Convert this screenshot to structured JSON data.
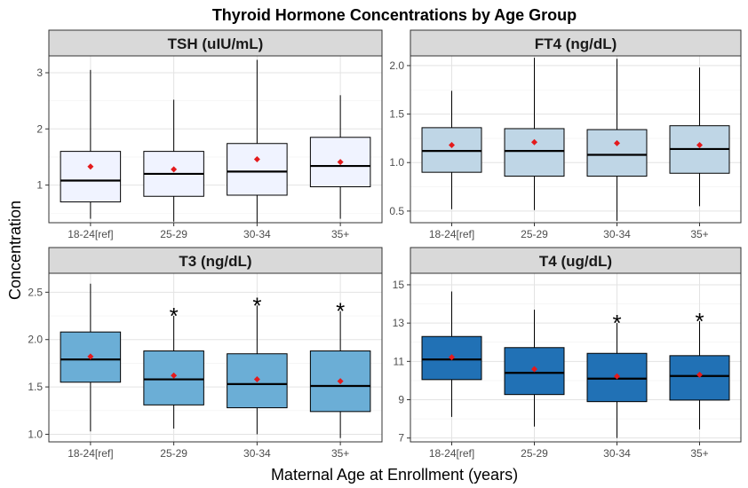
{
  "chart_data": {
    "type": "boxplot",
    "title": "Thyroid Hormone Concentrations by Age Group",
    "xlabel": "Maternal Age at Enrollment (years)",
    "ylabel": "Concentration",
    "categories": [
      "18-24[ref]",
      "25-29",
      "30-34",
      "35+"
    ],
    "grid": true,
    "facets": [
      {
        "name": "TSH (uIU/mL)",
        "fill": "#f0f3ff",
        "ylim": [
          0.33,
          3.3
        ],
        "yticks": [
          1,
          2,
          3
        ],
        "tick_labels": [
          "1",
          "2",
          "3"
        ],
        "boxes": [
          {
            "whisker_low": 0.4,
            "q1": 0.7,
            "median": 1.08,
            "q3": 1.6,
            "whisker_high": 3.05,
            "mean": 1.33
          },
          {
            "whisker_low": 0.35,
            "q1": 0.8,
            "median": 1.2,
            "q3": 1.6,
            "whisker_high": 2.52,
            "mean": 1.28
          },
          {
            "whisker_low": 0.33,
            "q1": 0.82,
            "median": 1.24,
            "q3": 1.74,
            "whisker_high": 3.23,
            "mean": 1.46
          },
          {
            "whisker_low": 0.4,
            "q1": 0.97,
            "median": 1.34,
            "q3": 1.85,
            "whisker_high": 2.6,
            "mean": 1.41
          }
        ],
        "significant": [
          false,
          false,
          false,
          false
        ]
      },
      {
        "name": "FT4 (ng/dL)",
        "fill": "#bfd6e6",
        "ylim": [
          0.38,
          2.1
        ],
        "yticks": [
          0.5,
          1.0,
          1.5,
          2.0
        ],
        "tick_labels": [
          "0.5",
          "1.0",
          "1.5",
          "2.0"
        ],
        "boxes": [
          {
            "whisker_low": 0.52,
            "q1": 0.9,
            "median": 1.12,
            "q3": 1.36,
            "whisker_high": 1.74,
            "mean": 1.18
          },
          {
            "whisker_low": 0.51,
            "q1": 0.86,
            "median": 1.12,
            "q3": 1.35,
            "whisker_high": 2.08,
            "mean": 1.21
          },
          {
            "whisker_low": 0.4,
            "q1": 0.86,
            "median": 1.08,
            "q3": 1.34,
            "whisker_high": 2.07,
            "mean": 1.2
          },
          {
            "whisker_low": 0.55,
            "q1": 0.89,
            "median": 1.14,
            "q3": 1.38,
            "whisker_high": 1.98,
            "mean": 1.18
          }
        ],
        "significant": [
          false,
          false,
          false,
          false
        ]
      },
      {
        "name": "T3 (ng/dL)",
        "fill": "#6baed6",
        "ylim": [
          0.92,
          2.7
        ],
        "yticks": [
          1.0,
          1.5,
          2.0,
          2.5
        ],
        "tick_labels": [
          "1.0",
          "1.5",
          "2.0",
          "2.5"
        ],
        "boxes": [
          {
            "whisker_low": 1.03,
            "q1": 1.55,
            "median": 1.79,
            "q3": 2.08,
            "whisker_high": 2.59,
            "mean": 1.82
          },
          {
            "whisker_low": 1.06,
            "q1": 1.31,
            "median": 1.58,
            "q3": 1.88,
            "whisker_high": 2.25,
            "mean": 1.62
          },
          {
            "whisker_low": 1.0,
            "q1": 1.28,
            "median": 1.53,
            "q3": 1.85,
            "whisker_high": 2.36,
            "mean": 1.58
          },
          {
            "whisker_low": 0.96,
            "q1": 1.24,
            "median": 1.51,
            "q3": 1.88,
            "whisker_high": 2.3,
            "mean": 1.56
          }
        ],
        "significant": [
          false,
          true,
          true,
          true
        ]
      },
      {
        "name": "T4 (ug/dL)",
        "fill": "#2171b5",
        "ylim": [
          6.8,
          15.6
        ],
        "yticks": [
          7,
          9,
          11,
          13,
          15
        ],
        "tick_labels": [
          "7",
          "9",
          "11",
          "13",
          "15"
        ],
        "boxes": [
          {
            "whisker_low": 8.1,
            "q1": 10.05,
            "median": 11.1,
            "q3": 12.3,
            "whisker_high": 14.65,
            "mean": 11.22
          },
          {
            "whisker_low": 7.6,
            "q1": 9.27,
            "median": 10.4,
            "q3": 11.72,
            "whisker_high": 13.7,
            "mean": 10.6
          },
          {
            "whisker_low": 7.0,
            "q1": 8.9,
            "median": 10.1,
            "q3": 11.42,
            "whisker_high": 13.0,
            "mean": 10.22
          },
          {
            "whisker_low": 7.45,
            "q1": 8.98,
            "median": 10.24,
            "q3": 11.3,
            "whisker_high": 13.1,
            "mean": 10.3
          }
        ],
        "significant": [
          false,
          false,
          true,
          true
        ]
      }
    ],
    "significance_marker": "*",
    "mean_color": "#e41a1c"
  }
}
